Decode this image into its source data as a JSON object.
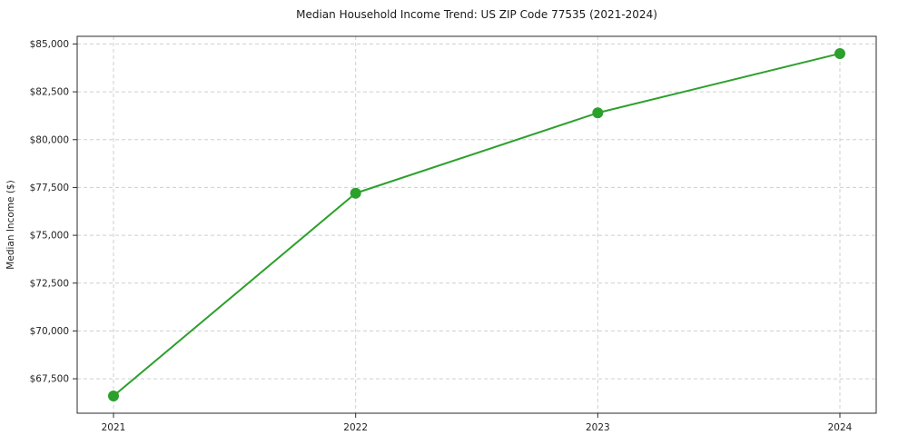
{
  "chart_data": {
    "type": "line",
    "title": "Median Household Income Trend: US ZIP Code 77535 (2021-2024)",
    "xlabel": "",
    "ylabel": "Median Income ($)",
    "x": [
      2021,
      2022,
      2023,
      2024
    ],
    "values": [
      66600,
      77200,
      81400,
      84500
    ],
    "series": [
      {
        "name": "Median Household Income",
        "values": [
          66600,
          77200,
          81400,
          84500
        ]
      }
    ],
    "xticks": [
      2021,
      2022,
      2023,
      2024
    ],
    "yticks": [
      67500,
      70000,
      72500,
      75000,
      77500,
      80000,
      82500,
      85000
    ],
    "ytick_labels": [
      "$67,500",
      "$70,000",
      "$72,500",
      "$75,000",
      "$77,500",
      "$80,000",
      "$82,500",
      "$85,000"
    ],
    "xlim": [
      2020.85,
      2024.15
    ],
    "ylim": [
      65700,
      85400
    ],
    "grid": true,
    "grid_style": "dashed",
    "legend": "none",
    "line_color": "#2ca02c",
    "marker": "circle",
    "grid_color": "#cfcfcf",
    "frame_color": "#2b2b2b"
  }
}
